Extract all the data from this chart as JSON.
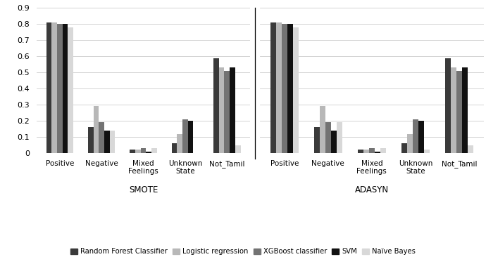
{
  "categories": [
    "Positive",
    "Negative",
    "Mixed\nFeelings",
    "Unknown\nState",
    "Not_Tamil"
  ],
  "group_labels": [
    "SMOTE",
    "ADASYN"
  ],
  "classifiers": [
    "Random Forest Classifier",
    "Logistic regression",
    "XGBoost classifier",
    "SVM",
    "Naïve Bayes"
  ],
  "colors": [
    "#3a3a3a",
    "#b8b8b8",
    "#737373",
    "#111111",
    "#d8d8d8"
  ],
  "smote_data": {
    "Random Forest Classifier": [
      0.81,
      0.16,
      0.02,
      0.06,
      0.59
    ],
    "Logistic regression": [
      0.81,
      0.29,
      0.02,
      0.12,
      0.53
    ],
    "XGBoost classifier": [
      0.8,
      0.19,
      0.03,
      0.21,
      0.51
    ],
    "SVM": [
      0.8,
      0.14,
      0.01,
      0.2,
      0.53
    ],
    "Naïve Bayes": [
      0.78,
      0.14,
      0.03,
      0.0,
      0.05
    ]
  },
  "adasyn_data": {
    "Random Forest Classifier": [
      0.81,
      0.16,
      0.02,
      0.06,
      0.59
    ],
    "Logistic regression": [
      0.81,
      0.29,
      0.02,
      0.12,
      0.53
    ],
    "XGBoost classifier": [
      0.8,
      0.19,
      0.03,
      0.21,
      0.51
    ],
    "SVM": [
      0.8,
      0.14,
      0.01,
      0.2,
      0.53
    ],
    "Naïve Bayes": [
      0.78,
      0.19,
      0.03,
      0.02,
      0.05
    ]
  },
  "ylim": [
    0,
    0.9
  ],
  "yticks": [
    0.0,
    0.1,
    0.2,
    0.3,
    0.4,
    0.5,
    0.6,
    0.7,
    0.8,
    0.9
  ],
  "bar_width": 0.13,
  "figsize": [
    6.9,
    3.76
  ],
  "dpi": 100
}
